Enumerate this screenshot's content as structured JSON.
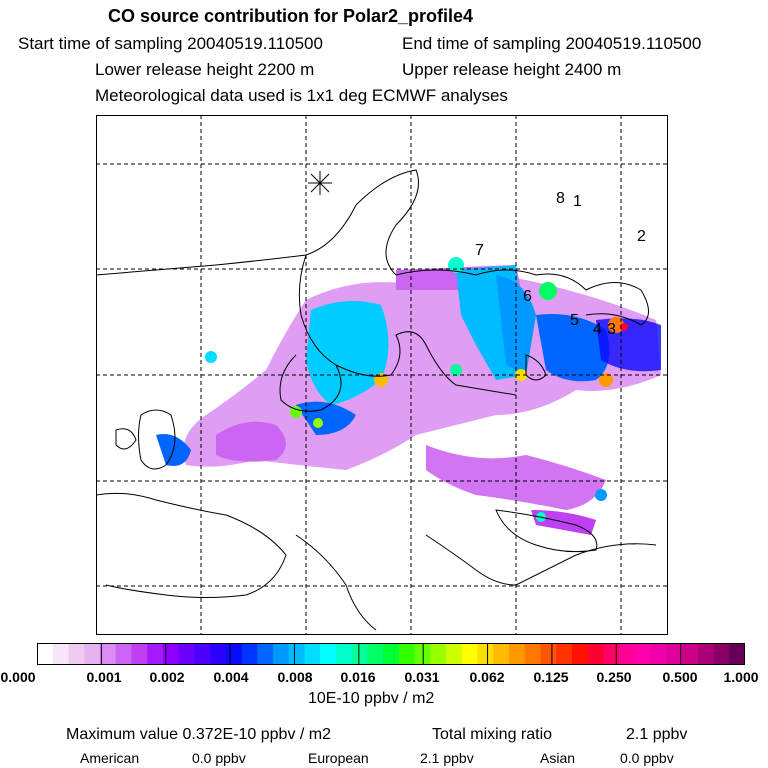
{
  "header": {
    "title": "CO  source contribution for Polar2_profile4",
    "start_time": "Start time of sampling 20040519.110500",
    "end_time": "End time of sampling 20040519.110500",
    "lower_height": "Lower release height 2200 m",
    "upper_height": "Upper release height 2400 m",
    "met_data": "Meteorological data used is 1x1 deg ECMWF analyses"
  },
  "map": {
    "labels": [
      "8",
      "1",
      "2",
      "7",
      "6",
      "5",
      "4",
      "3"
    ]
  },
  "colorbar": {
    "ticks": [
      "0.000",
      "0.001",
      "0.002",
      "0.004",
      "0.008",
      "0.016",
      "0.031",
      "0.062",
      "0.125",
      "0.250",
      "0.500",
      "1.000"
    ],
    "units": "10E-10 ppbv / m2",
    "colors": [
      "#ffffff",
      "#f7e6f7",
      "#efccef",
      "#e6b3f2",
      "#d98cf2",
      "#cc66f2",
      "#bf40f2",
      "#a61aff",
      "#8c00ff",
      "#6b00ff",
      "#4d00ff",
      "#2b00ff",
      "#0a0aff",
      "#0033ff",
      "#0066ff",
      "#0099ff",
      "#00bbff",
      "#00ddff",
      "#00ffff",
      "#00ffcc",
      "#00ff99",
      "#00ff66",
      "#00ff33",
      "#33ff00",
      "#66ff00",
      "#99ff00",
      "#ccff00",
      "#ffff00",
      "#ffdd00",
      "#ffbb00",
      "#ff9900",
      "#ff7700",
      "#ff5500",
      "#ff3300",
      "#ff1100",
      "#ff0033",
      "#ff0066",
      "#ff0099",
      "#ff00aa",
      "#ee00aa",
      "#dd0099",
      "#cc0088",
      "#aa0077",
      "#880066",
      "#660055"
    ]
  },
  "footer": {
    "max_value": "Maximum value  0.372E-10 ppbv / m2",
    "total_mixing": "Total mixing ratio",
    "total_value": "2.1 ppbv",
    "american_label": "American",
    "american_value": "0.0 ppbv",
    "european_label": "European",
    "european_value": "2.1 ppbv",
    "asian_label": "Asian",
    "asian_value": "0.0 ppbv"
  }
}
